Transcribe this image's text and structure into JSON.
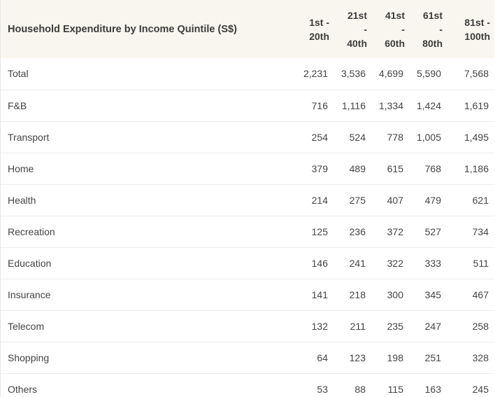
{
  "table": {
    "title": "Household Expenditure by Income Quintile (S$)",
    "columns": [
      [
        "1st -",
        "20th"
      ],
      [
        "21st",
        "-",
        "40th"
      ],
      [
        "41st",
        "-",
        "60th"
      ],
      [
        "61st",
        "-",
        "80th"
      ],
      [
        "81st -",
        "100th"
      ]
    ],
    "rows": [
      {
        "label": "Total",
        "values": [
          "2,231",
          "3,536",
          "4,699",
          "5,590",
          "7,568"
        ]
      },
      {
        "label": "F&B",
        "values": [
          "716",
          "1,116",
          "1,334",
          "1,424",
          "1,619"
        ]
      },
      {
        "label": "Transport",
        "values": [
          "254",
          "524",
          "778",
          "1,005",
          "1,495"
        ]
      },
      {
        "label": "Home",
        "values": [
          "379",
          "489",
          "615",
          "768",
          "1,186"
        ]
      },
      {
        "label": "Health",
        "values": [
          "214",
          "275",
          "407",
          "479",
          "621"
        ]
      },
      {
        "label": "Recreation",
        "values": [
          "125",
          "236",
          "372",
          "527",
          "734"
        ]
      },
      {
        "label": "Education",
        "values": [
          "146",
          "241",
          "322",
          "333",
          "511"
        ]
      },
      {
        "label": "Insurance",
        "values": [
          "141",
          "218",
          "300",
          "345",
          "467"
        ]
      },
      {
        "label": "Telecom",
        "values": [
          "132",
          "211",
          "235",
          "247",
          "258"
        ]
      },
      {
        "label": "Shopping",
        "values": [
          "64",
          "123",
          "198",
          "251",
          "328"
        ]
      },
      {
        "label": "Others",
        "values": [
          "53",
          "88",
          "115",
          "163",
          "245"
        ]
      }
    ]
  }
}
